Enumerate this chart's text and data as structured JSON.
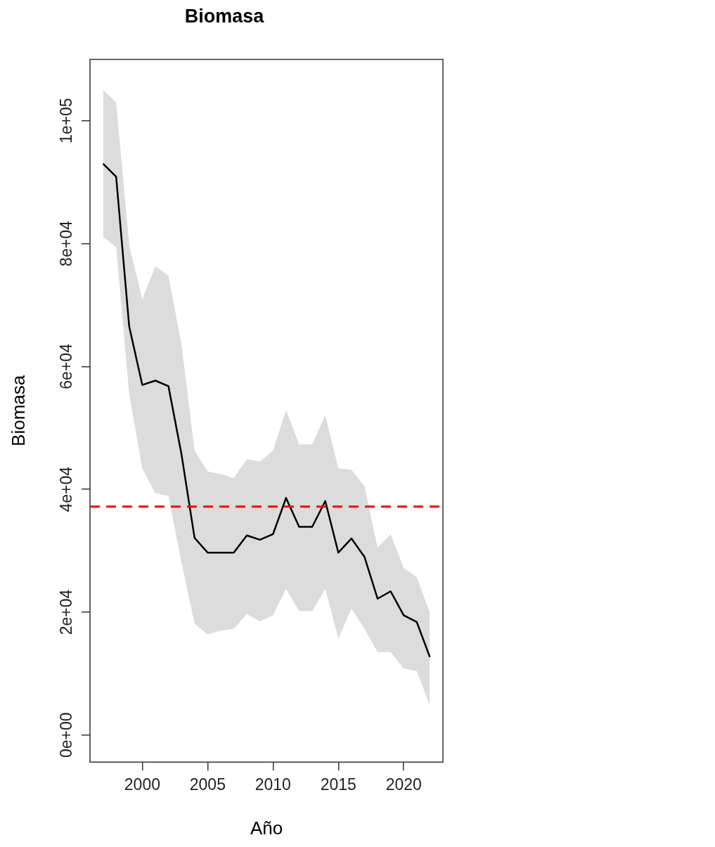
{
  "chart_data": {
    "type": "line",
    "title": "Biomasa",
    "xlabel": "Año",
    "ylabel": "Biomasa",
    "x": [
      1997,
      1998,
      1999,
      2000,
      2001,
      2002,
      2003,
      2004,
      2005,
      2006,
      2007,
      2008,
      2009,
      2010,
      2011,
      2012,
      2013,
      2014,
      2015,
      2016,
      2017,
      2018,
      2019,
      2020,
      2021,
      2022
    ],
    "series": [
      {
        "color": "#000000",
        "values": [
          93000,
          90900,
          66500,
          57000,
          57700,
          56800,
          45700,
          32100,
          29700,
          29700,
          29700,
          32500,
          31800,
          32700,
          38600,
          33900,
          33900,
          38100,
          29700,
          32000,
          29000,
          22200,
          23400,
          19500,
          18400,
          12700
        ],
        "lower": [
          81100,
          79400,
          55500,
          43400,
          39400,
          38900,
          28100,
          18100,
          16400,
          17000,
          17300,
          19700,
          18500,
          19500,
          23800,
          20200,
          20200,
          23800,
          15700,
          20600,
          17300,
          13500,
          13500,
          10800,
          10400,
          4800
        ],
        "upper": [
          105000,
          103000,
          79700,
          71000,
          76300,
          74800,
          63600,
          46300,
          42900,
          42500,
          41800,
          44900,
          44500,
          46300,
          52900,
          47300,
          47300,
          52100,
          43400,
          43200,
          40500,
          30500,
          32700,
          27200,
          25700,
          19900
        ]
      }
    ],
    "xlim": [
      1996,
      2023
    ],
    "xticks": [
      2000,
      2005,
      2010,
      2015,
      2020
    ],
    "ylim": [
      -4400,
      110000
    ],
    "yticks": [
      {
        "value": 0,
        "label": "0e+00"
      },
      {
        "value": 20000,
        "label": "2e+04"
      },
      {
        "value": 40000,
        "label": "4e+04"
      },
      {
        "value": 60000,
        "label": "6e+04"
      },
      {
        "value": 80000,
        "label": "8e+04"
      },
      {
        "value": 100000,
        "label": "1e+05"
      }
    ],
    "ref_lines": [
      {
        "axis": "y",
        "value": 37200,
        "color": "#ff0000",
        "line_style": "dashed"
      }
    ],
    "grid": false,
    "legend": false,
    "marker": "none",
    "line_style": "solid"
  }
}
